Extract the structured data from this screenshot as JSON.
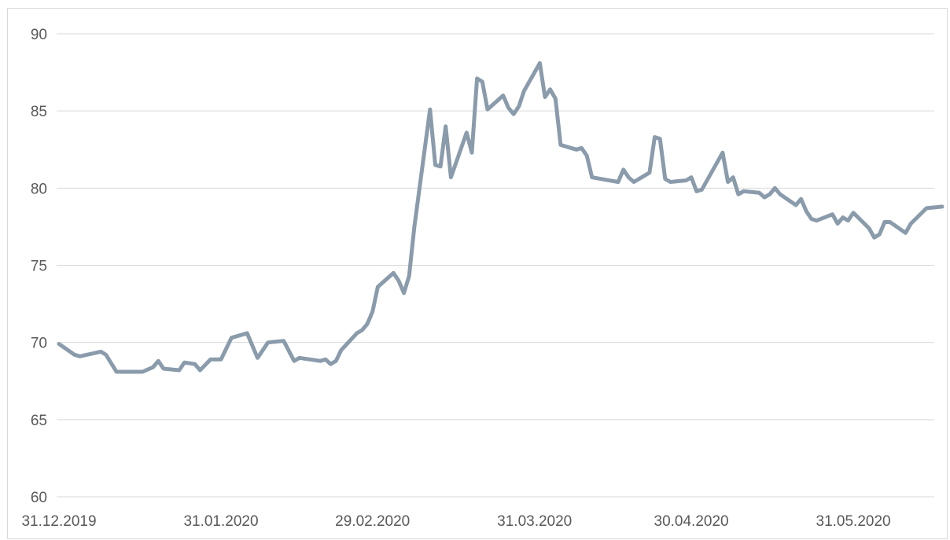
{
  "chart_data": {
    "type": "line",
    "title": "",
    "xlabel": "",
    "ylabel": "",
    "ylim": [
      60,
      90
    ],
    "yticks": [
      60,
      65,
      70,
      75,
      80,
      85,
      90
    ],
    "xticks": [
      "31.12.2019",
      "31.01.2020",
      "29.02.2020",
      "31.03.2020",
      "30.04.2020",
      "31.05.2020"
    ],
    "grid": "horizontal",
    "series_color": "#8a9bab",
    "series": [
      {
        "values": [
          [
            "2019-12-31",
            69.9
          ],
          [
            "2020-01-03",
            69.2
          ],
          [
            "2020-01-04",
            69.1
          ],
          [
            "2020-01-08",
            69.4
          ],
          [
            "2020-01-09",
            69.2
          ],
          [
            "2020-01-11",
            68.1
          ],
          [
            "2020-01-14",
            68.1
          ],
          [
            "2020-01-15",
            68.1
          ],
          [
            "2020-01-16",
            68.1
          ],
          [
            "2020-01-18",
            68.4
          ],
          [
            "2020-01-19",
            68.8
          ],
          [
            "2020-01-20",
            68.3
          ],
          [
            "2020-01-23",
            68.2
          ],
          [
            "2020-01-24",
            68.7
          ],
          [
            "2020-01-26",
            68.6
          ],
          [
            "2020-01-27",
            68.2
          ],
          [
            "2020-01-29",
            68.9
          ],
          [
            "2020-01-30",
            68.9
          ],
          [
            "2020-01-31",
            68.9
          ],
          [
            "2020-02-02",
            70.3
          ],
          [
            "2020-02-05",
            70.6
          ],
          [
            "2020-02-07",
            69.0
          ],
          [
            "2020-02-09",
            70.0
          ],
          [
            "2020-02-12",
            70.1
          ],
          [
            "2020-02-14",
            68.8
          ],
          [
            "2020-02-15",
            69.0
          ],
          [
            "2020-02-19",
            68.8
          ],
          [
            "2020-02-20",
            68.9
          ],
          [
            "2020-02-21",
            68.6
          ],
          [
            "2020-02-22",
            68.8
          ],
          [
            "2020-02-23",
            69.5
          ],
          [
            "2020-02-26",
            70.6
          ],
          [
            "2020-02-27",
            70.8
          ],
          [
            "2020-02-28",
            71.2
          ],
          [
            "2020-02-29",
            72.0
          ],
          [
            "2020-03-01",
            73.6
          ],
          [
            "2020-03-04",
            74.5
          ],
          [
            "2020-03-05",
            74.0
          ],
          [
            "2020-03-06",
            73.2
          ],
          [
            "2020-03-07",
            74.3
          ],
          [
            "2020-03-08",
            77.5
          ],
          [
            "2020-03-11",
            85.1
          ],
          [
            "2020-03-12",
            81.5
          ],
          [
            "2020-03-13",
            81.4
          ],
          [
            "2020-03-14",
            84.0
          ],
          [
            "2020-03-15",
            80.7
          ],
          [
            "2020-03-18",
            83.6
          ],
          [
            "2020-03-19",
            82.3
          ],
          [
            "2020-03-20",
            87.1
          ],
          [
            "2020-03-21",
            86.9
          ],
          [
            "2020-03-22",
            85.1
          ],
          [
            "2020-03-25",
            86.0
          ],
          [
            "2020-03-26",
            85.2
          ],
          [
            "2020-03-27",
            84.8
          ],
          [
            "2020-03-28",
            85.3
          ],
          [
            "2020-03-29",
            86.3
          ],
          [
            "2020-04-01",
            88.1
          ],
          [
            "2020-04-02",
            85.9
          ],
          [
            "2020-04-03",
            86.4
          ],
          [
            "2020-04-04",
            85.8
          ],
          [
            "2020-04-05",
            82.8
          ],
          [
            "2020-04-08",
            82.5
          ],
          [
            "2020-04-09",
            82.6
          ],
          [
            "2020-04-10",
            82.1
          ],
          [
            "2020-04-11",
            80.7
          ],
          [
            "2020-04-16",
            80.4
          ],
          [
            "2020-04-17",
            81.2
          ],
          [
            "2020-04-18",
            80.7
          ],
          [
            "2020-04-19",
            80.4
          ],
          [
            "2020-04-22",
            81.0
          ],
          [
            "2020-04-23",
            83.3
          ],
          [
            "2020-04-24",
            83.2
          ],
          [
            "2020-04-25",
            80.6
          ],
          [
            "2020-04-26",
            80.4
          ],
          [
            "2020-04-29",
            80.5
          ],
          [
            "2020-04-30",
            80.7
          ],
          [
            "2020-05-01",
            79.8
          ],
          [
            "2020-05-02",
            79.9
          ],
          [
            "2020-05-06",
            82.3
          ],
          [
            "2020-05-07",
            80.4
          ],
          [
            "2020-05-08",
            80.7
          ],
          [
            "2020-05-09",
            79.6
          ],
          [
            "2020-05-10",
            79.8
          ],
          [
            "2020-05-13",
            79.7
          ],
          [
            "2020-05-14",
            79.4
          ],
          [
            "2020-05-15",
            79.6
          ],
          [
            "2020-05-16",
            80.0
          ],
          [
            "2020-05-17",
            79.6
          ],
          [
            "2020-05-20",
            78.9
          ],
          [
            "2020-05-21",
            79.3
          ],
          [
            "2020-05-22",
            78.5
          ],
          [
            "2020-05-23",
            78.0
          ],
          [
            "2020-05-24",
            77.9
          ],
          [
            "2020-05-27",
            78.3
          ],
          [
            "2020-05-28",
            77.7
          ],
          [
            "2020-05-29",
            78.1
          ],
          [
            "2020-05-30",
            77.9
          ],
          [
            "2020-05-31",
            78.4
          ],
          [
            "2020-06-03",
            77.4
          ],
          [
            "2020-06-04",
            76.8
          ],
          [
            "2020-06-05",
            77.0
          ],
          [
            "2020-06-06",
            77.8
          ],
          [
            "2020-06-07",
            77.8
          ],
          [
            "2020-06-10",
            77.1
          ],
          [
            "2020-06-11",
            77.7
          ],
          [
            "2020-06-14",
            78.7
          ],
          [
            "2020-06-17",
            78.8
          ]
        ]
      }
    ]
  }
}
